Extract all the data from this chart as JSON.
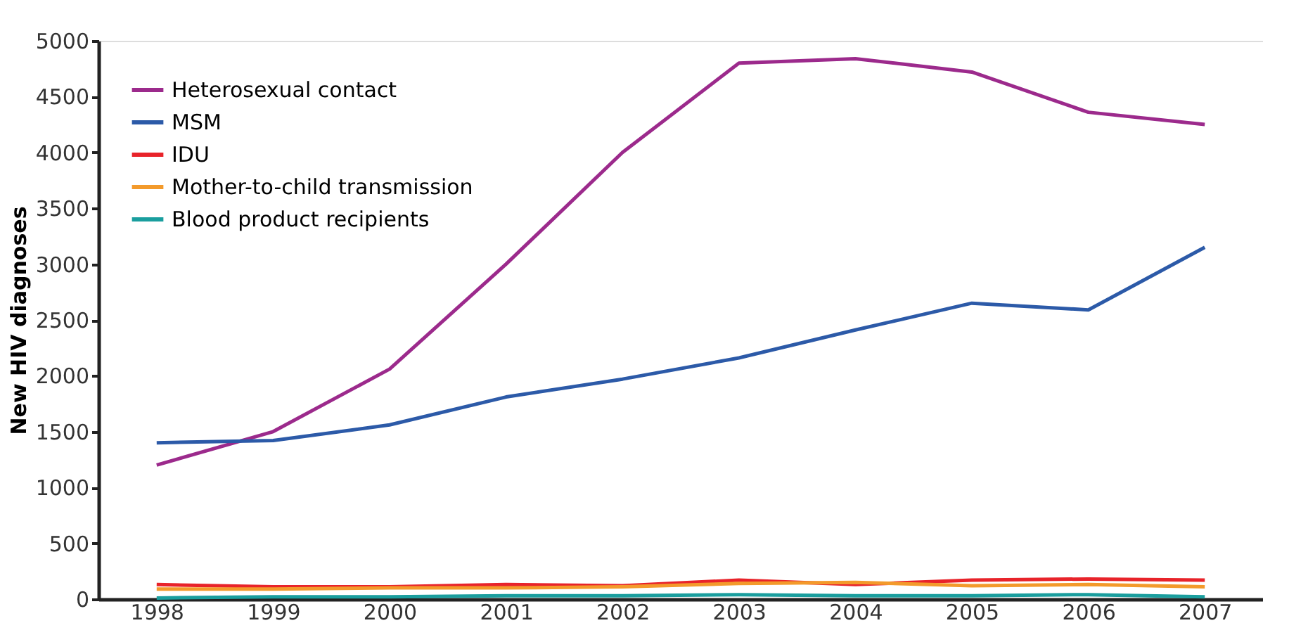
{
  "chart_data": {
    "type": "line",
    "ylabel": "New HIV diagnoses",
    "categories": [
      "1998",
      "1999",
      "2000",
      "2001",
      "2002",
      "2003",
      "2004",
      "2005",
      "2006",
      "2007"
    ],
    "series": [
      {
        "name": "Heterosexual contact",
        "color": "#9c2a8c",
        "values": [
          1200,
          1500,
          2060,
          3000,
          4000,
          4800,
          4840,
          4720,
          4360,
          4250
        ]
      },
      {
        "name": "MSM",
        "color": "#2c5aa8",
        "values": [
          1400,
          1420,
          1560,
          1810,
          1970,
          2160,
          2410,
          2650,
          2590,
          3150
        ]
      },
      {
        "name": "IDU",
        "color": "#e8232a",
        "values": [
          130,
          110,
          110,
          130,
          120,
          170,
          130,
          170,
          180,
          170
        ]
      },
      {
        "name": "Mother-to-child transmission",
        "color": "#f39a2b",
        "values": [
          90,
          90,
          100,
          100,
          110,
          140,
          150,
          120,
          130,
          110
        ]
      },
      {
        "name": "Blood product recipients",
        "color": "#1a9e9e",
        "values": [
          10,
          20,
          20,
          30,
          30,
          40,
          30,
          30,
          40,
          20
        ]
      }
    ],
    "ylim": [
      0,
      5000
    ],
    "yticks": [
      0,
      500,
      1000,
      1500,
      2000,
      2500,
      3000,
      3500,
      4000,
      4500,
      5000
    ],
    "grid": false,
    "legend": "top left",
    "marker": "none",
    "line_style": "solid"
  }
}
